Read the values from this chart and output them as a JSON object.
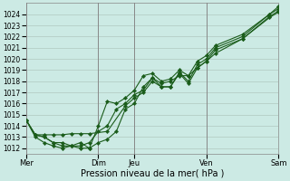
{
  "xlabel": "Pression niveau de la mer( hPa )",
  "background_color": "#cceae4",
  "grid_color": "#b0c8c0",
  "line_color": "#1a5c1a",
  "ylim": [
    1011.5,
    1025.0
  ],
  "yticks": [
    1012,
    1013,
    1014,
    1015,
    1016,
    1017,
    1018,
    1019,
    1020,
    1021,
    1022,
    1023,
    1024
  ],
  "vlines": [
    0,
    24,
    36,
    60,
    84
  ],
  "vline_color": "#888888",
  "xtick_positions": [
    0,
    24,
    36,
    60,
    84
  ],
  "xtick_labels": [
    "Mer",
    "Dim",
    "Jeu",
    "Ven",
    "Sam"
  ],
  "xlim": [
    0,
    84
  ],
  "series": [
    {
      "x": [
        0,
        3,
        6,
        9,
        12,
        15,
        18,
        21,
        27,
        33,
        36,
        39,
        42,
        45,
        48,
        51,
        54,
        57,
        60,
        63,
        72,
        81,
        84
      ],
      "y": [
        1014.5,
        1013.2,
        1013.2,
        1013.2,
        1013.2,
        1013.3,
        1013.3,
        1013.3,
        1013.5,
        1015.8,
        1016.5,
        1017.0,
        1018.0,
        1017.5,
        1017.5,
        1018.8,
        1018.0,
        1019.5,
        1020.0,
        1021.0,
        1022.0,
        1024.0,
        1024.5
      ]
    },
    {
      "x": [
        0,
        3,
        6,
        9,
        12,
        15,
        18,
        21,
        24,
        27,
        30,
        33,
        36,
        39,
        42,
        45,
        48,
        51,
        54,
        57,
        60,
        63,
        72,
        81,
        84
      ],
      "y": [
        1014.5,
        1013.2,
        1013.0,
        1012.5,
        1012.2,
        1012.2,
        1012.2,
        1012.5,
        1013.5,
        1014.0,
        1015.5,
        1016.0,
        1016.8,
        1017.2,
        1018.3,
        1017.8,
        1018.0,
        1018.5,
        1018.5,
        1019.2,
        1019.8,
        1020.5,
        1021.8,
        1023.8,
        1024.3
      ]
    },
    {
      "x": [
        0,
        3,
        6,
        9,
        12,
        15,
        18,
        21,
        24,
        27,
        30,
        33,
        36,
        39,
        42,
        45,
        48,
        51,
        54,
        57,
        60,
        63,
        72,
        81,
        84
      ],
      "y": [
        1014.5,
        1013.2,
        1013.0,
        1012.5,
        1012.5,
        1012.2,
        1012.5,
        1012.0,
        1014.0,
        1016.2,
        1016.0,
        1016.5,
        1017.2,
        1018.5,
        1018.7,
        1018.0,
        1018.2,
        1019.0,
        1018.5,
        1019.8,
        1020.3,
        1021.2,
        1022.2,
        1024.0,
        1024.7
      ]
    },
    {
      "x": [
        0,
        3,
        6,
        9,
        12,
        15,
        18,
        21,
        24,
        27,
        30,
        33,
        36,
        39,
        42,
        45,
        48,
        51,
        54,
        57,
        60,
        63,
        72,
        81,
        84
      ],
      "y": [
        1014.5,
        1013.0,
        1012.5,
        1012.2,
        1012.0,
        1012.2,
        1012.0,
        1012.0,
        1012.5,
        1012.8,
        1013.5,
        1015.5,
        1016.0,
        1017.5,
        1018.3,
        1017.5,
        1017.5,
        1018.7,
        1017.8,
        1019.2,
        1019.8,
        1020.8,
        1021.8,
        1023.7,
        1024.2
      ]
    }
  ]
}
